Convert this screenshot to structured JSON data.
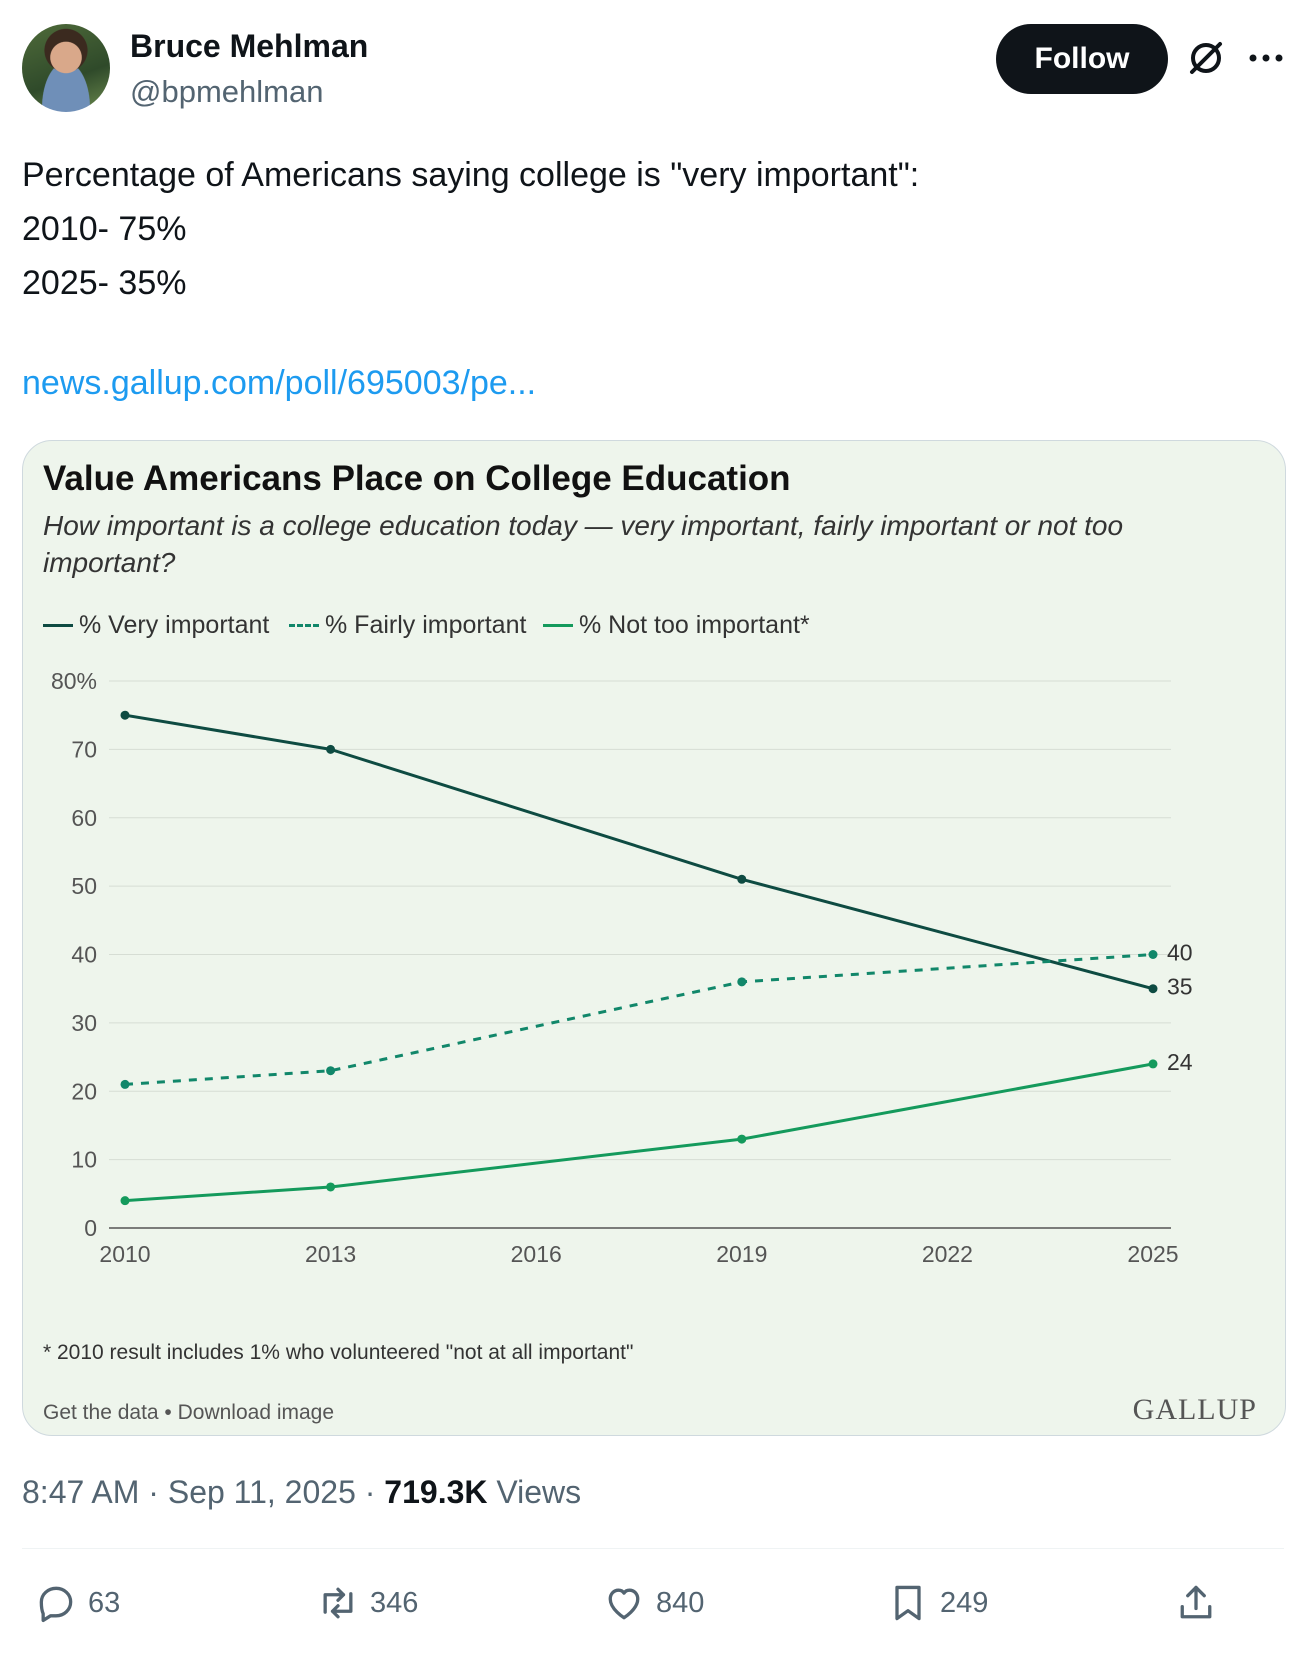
{
  "author": {
    "name": "Bruce Mehlman",
    "handle": "@bpmehlman"
  },
  "follow_label": "Follow",
  "tweet": {
    "lines": [
      "Percentage of Americans saying college is \"very important\":",
      "2010- 75%",
      "2025- 35%"
    ],
    "link": "news.gallup.com/poll/695003/pe..."
  },
  "card": {
    "title": "Value Americans Place on College Education",
    "subtitle": "How important is a college education today — very important, fairly important or not too important?",
    "footnote": "* 2010 result includes 1% who volunteered \"not at all important\"",
    "footer": "Get the data • Download image",
    "logo": "GALLUP"
  },
  "chart_data": {
    "type": "line",
    "x": [
      2010,
      2013,
      2019,
      2025
    ],
    "x_ticks": [
      "2010",
      "2013",
      "2016",
      "2019",
      "2022",
      "2025"
    ],
    "y_ticks": [
      "0",
      "10",
      "20",
      "30",
      "40",
      "50",
      "60",
      "70",
      "80%"
    ],
    "ylim": [
      0,
      80
    ],
    "grid": true,
    "legend": "top-left",
    "series": [
      {
        "name": "% Very important",
        "values": [
          75,
          70,
          51,
          35
        ],
        "end_label": "35",
        "color": "#0e4b42",
        "dashed": false
      },
      {
        "name": "% Fairly important",
        "values": [
          21,
          23,
          36,
          40
        ],
        "end_label": "40",
        "color": "#11876a",
        "dashed": true
      },
      {
        "name": "% Not too important*",
        "values": [
          4,
          6,
          13,
          24
        ],
        "end_label": "24",
        "color": "#149a5c",
        "dashed": false
      }
    ]
  },
  "meta": {
    "time": "8:47 AM",
    "date": "Sep 11, 2025",
    "views_count": "719.3K",
    "views_label": "Views"
  },
  "actions": {
    "replies": "63",
    "reposts": "346",
    "likes": "840",
    "bookmarks": "249"
  },
  "icons": [
    "grok-icon",
    "more-icon",
    "reply-icon",
    "repost-icon",
    "like-icon",
    "bookmark-icon",
    "share-icon"
  ]
}
